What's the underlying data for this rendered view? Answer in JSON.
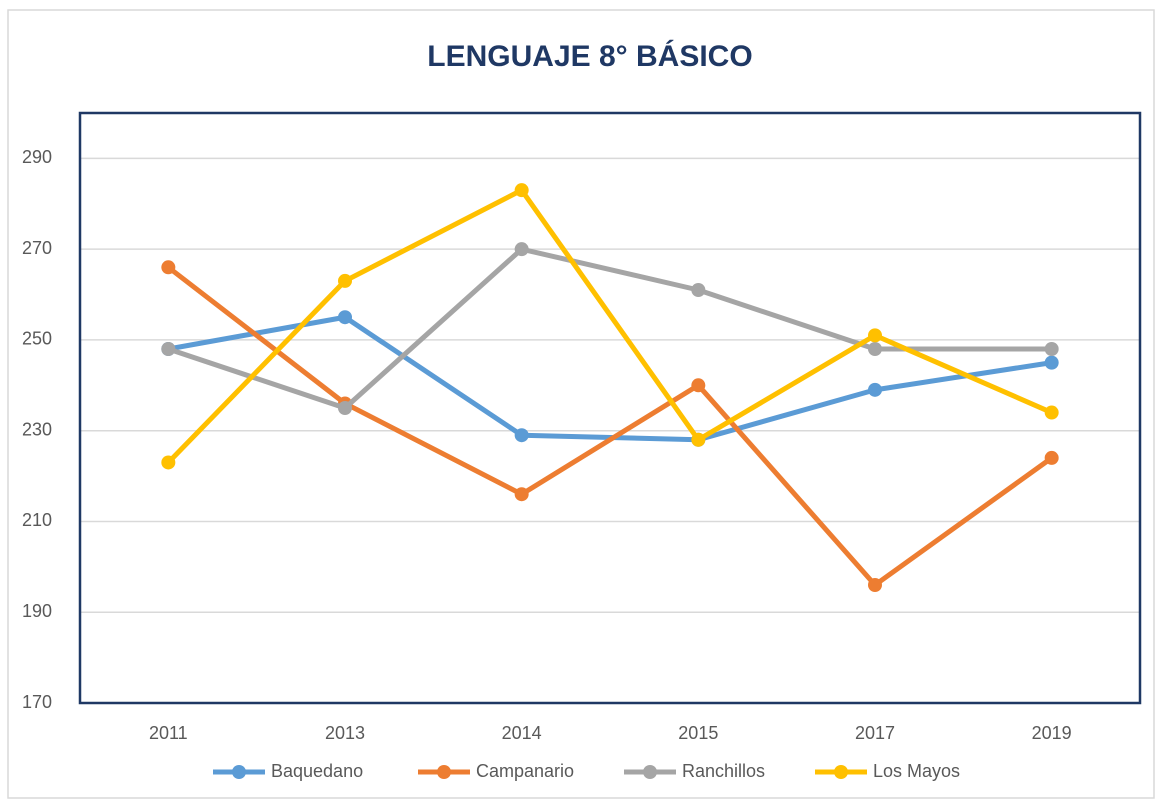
{
  "chart_data": {
    "type": "line",
    "title": "LENGUAJE 8° BÁSICO",
    "categories": [
      "2011",
      "2013",
      "2014",
      "2015",
      "2017",
      "2019"
    ],
    "series": [
      {
        "name": "Baquedano",
        "color": "#5b9bd5",
        "values": [
          248,
          255,
          229,
          228,
          239,
          245
        ]
      },
      {
        "name": "Campanario",
        "color": "#ed7d31",
        "values": [
          266,
          236,
          216,
          240,
          196,
          224
        ]
      },
      {
        "name": "Ranchillos",
        "color": "#a5a5a5",
        "values": [
          248,
          235,
          270,
          261,
          248,
          248
        ]
      },
      {
        "name": "Los Mayos",
        "color": "#ffc000",
        "values": [
          223,
          263,
          283,
          228,
          251,
          234
        ]
      }
    ],
    "ylim": [
      170,
      300
    ],
    "yticks": [
      170,
      190,
      210,
      230,
      250,
      270,
      290
    ],
    "grid": true,
    "legend": "bottom"
  }
}
